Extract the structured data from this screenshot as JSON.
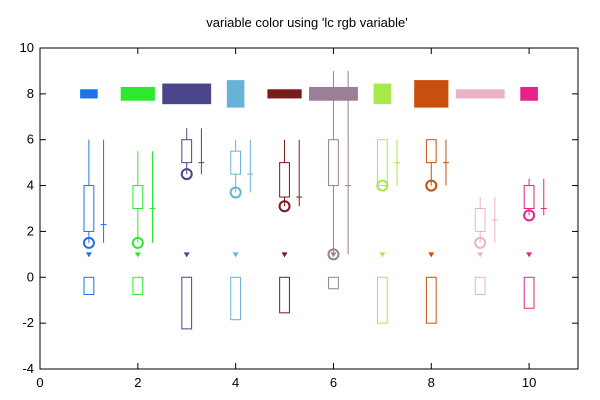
{
  "chart_data": {
    "type": "candlestick-mixed",
    "title": "variable color using 'lc rgb variable'",
    "xlabel": "",
    "ylabel": "",
    "xlim": [
      0,
      11
    ],
    "ylim": [
      -4,
      10
    ],
    "xticks": [
      0,
      2,
      4,
      6,
      8,
      10
    ],
    "yticks": [
      -4,
      -2,
      0,
      2,
      4,
      6,
      8,
      10
    ],
    "grid": false,
    "legend": "none",
    "series": [
      {
        "x": 1,
        "color": "#1a73e8",
        "bar": {
          "y": 8.0,
          "half_height": 0.2,
          "half_width": 0.18
        },
        "box": {
          "q1": 2.0,
          "q3": 4.0,
          "min": 1.5,
          "max": 6.0
        },
        "whisker2": {
          "min": 1.5,
          "mid": 2.3,
          "max": 6.0
        },
        "circle": 1.5,
        "marker": 1.0,
        "neg_box": {
          "top": 0.0,
          "bottom": -0.75
        }
      },
      {
        "x": 2,
        "color": "#2ee830",
        "bar": {
          "y": 8.0,
          "half_height": 0.3,
          "half_width": 0.35
        },
        "box": {
          "q1": 3.0,
          "q3": 4.0,
          "min": 1.5,
          "max": 5.5
        },
        "whisker2": {
          "min": 1.5,
          "mid": 3.0,
          "max": 5.5
        },
        "circle": 1.5,
        "marker": 1.0,
        "neg_box": {
          "top": 0.0,
          "bottom": -0.75
        }
      },
      {
        "x": 3,
        "color": "#4b4589",
        "bar": {
          "y": 8.0,
          "half_height": 0.45,
          "half_width": 0.5
        },
        "box": {
          "q1": 5.0,
          "q3": 6.0,
          "min": 4.5,
          "max": 6.5
        },
        "whisker2": {
          "min": 4.5,
          "mid": 5.0,
          "max": 6.5
        },
        "circle": 4.5,
        "marker": 1.0,
        "neg_box": {
          "top": 0.0,
          "bottom": -2.25
        }
      },
      {
        "x": 4,
        "color": "#67b3d8",
        "bar": {
          "y": 8.0,
          "half_height": 0.6,
          "half_width": 0.18
        },
        "box": {
          "q1": 4.5,
          "q3": 5.5,
          "min": 3.7,
          "max": 6.0
        },
        "whisker2": {
          "min": 3.7,
          "mid": 4.5,
          "max": 6.0
        },
        "circle": 3.7,
        "marker": 1.0,
        "neg_box": {
          "top": 0.0,
          "bottom": -1.85
        }
      },
      {
        "x": 5,
        "color": "#7a1a1a",
        "bar": {
          "y": 8.0,
          "half_height": 0.2,
          "half_width": 0.35
        },
        "box": {
          "q1": 3.5,
          "q3": 5.0,
          "min": 3.1,
          "max": 6.0
        },
        "whisker2": {
          "min": 3.1,
          "mid": 3.5,
          "max": 6.0
        },
        "circle": 3.1,
        "marker": 1.0,
        "neg_box": {
          "top": 0.0,
          "bottom": -1.55
        }
      },
      {
        "x": 6,
        "color": "#9a7f97",
        "bar": {
          "y": 8.0,
          "half_height": 0.3,
          "half_width": 0.5
        },
        "box": {
          "q1": 4.0,
          "q3": 6.0,
          "min": 1.0,
          "max": 9.0
        },
        "whisker2": {
          "min": 1.0,
          "mid": 4.0,
          "max": 9.0
        },
        "circle": 1.0,
        "marker": 1.0,
        "neg_box": {
          "top": 0.0,
          "bottom": -0.5
        }
      },
      {
        "x": 7,
        "color": "#a8e84b",
        "bar": {
          "y": 8.0,
          "half_height": 0.45,
          "half_width": 0.18
        },
        "box": {
          "q1": 4.0,
          "q3": 6.0,
          "min": 4.0,
          "max": 6.0
        },
        "whisker2": {
          "min": 4.0,
          "mid": 5.0,
          "max": 6.0
        },
        "circle": 4.0,
        "marker": 1.0,
        "neg_box": {
          "top": 0.0,
          "bottom": -2.0
        }
      },
      {
        "x": 8,
        "color": "#c94f10",
        "bar": {
          "y": 8.0,
          "half_height": 0.6,
          "half_width": 0.35
        },
        "box": {
          "q1": 5.0,
          "q3": 6.0,
          "min": 4.0,
          "max": 6.0
        },
        "whisker2": {
          "min": 4.0,
          "mid": 5.0,
          "max": 6.0
        },
        "circle": 4.0,
        "marker": 1.0,
        "neg_box": {
          "top": 0.0,
          "bottom": -2.0
        }
      },
      {
        "x": 9,
        "color": "#e8b3c8",
        "bar": {
          "y": 8.0,
          "half_height": 0.2,
          "half_width": 0.5
        },
        "box": {
          "q1": 2.0,
          "q3": 3.0,
          "min": 1.5,
          "max": 3.5
        },
        "whisker2": {
          "min": 1.5,
          "mid": 2.5,
          "max": 3.5
        },
        "circle": 1.5,
        "marker": 1.0,
        "neg_box": {
          "top": 0.0,
          "bottom": -0.75
        }
      },
      {
        "x": 10,
        "color": "#e8208a",
        "bar": {
          "y": 8.0,
          "half_height": 0.3,
          "half_width": 0.18
        },
        "box": {
          "q1": 3.0,
          "q3": 4.0,
          "min": 2.7,
          "max": 4.3
        },
        "whisker2": {
          "min": 2.7,
          "mid": 3.0,
          "max": 4.3
        },
        "circle": 2.7,
        "marker": 1.0,
        "neg_box": {
          "top": 0.0,
          "bottom": -1.35
        }
      }
    ]
  }
}
